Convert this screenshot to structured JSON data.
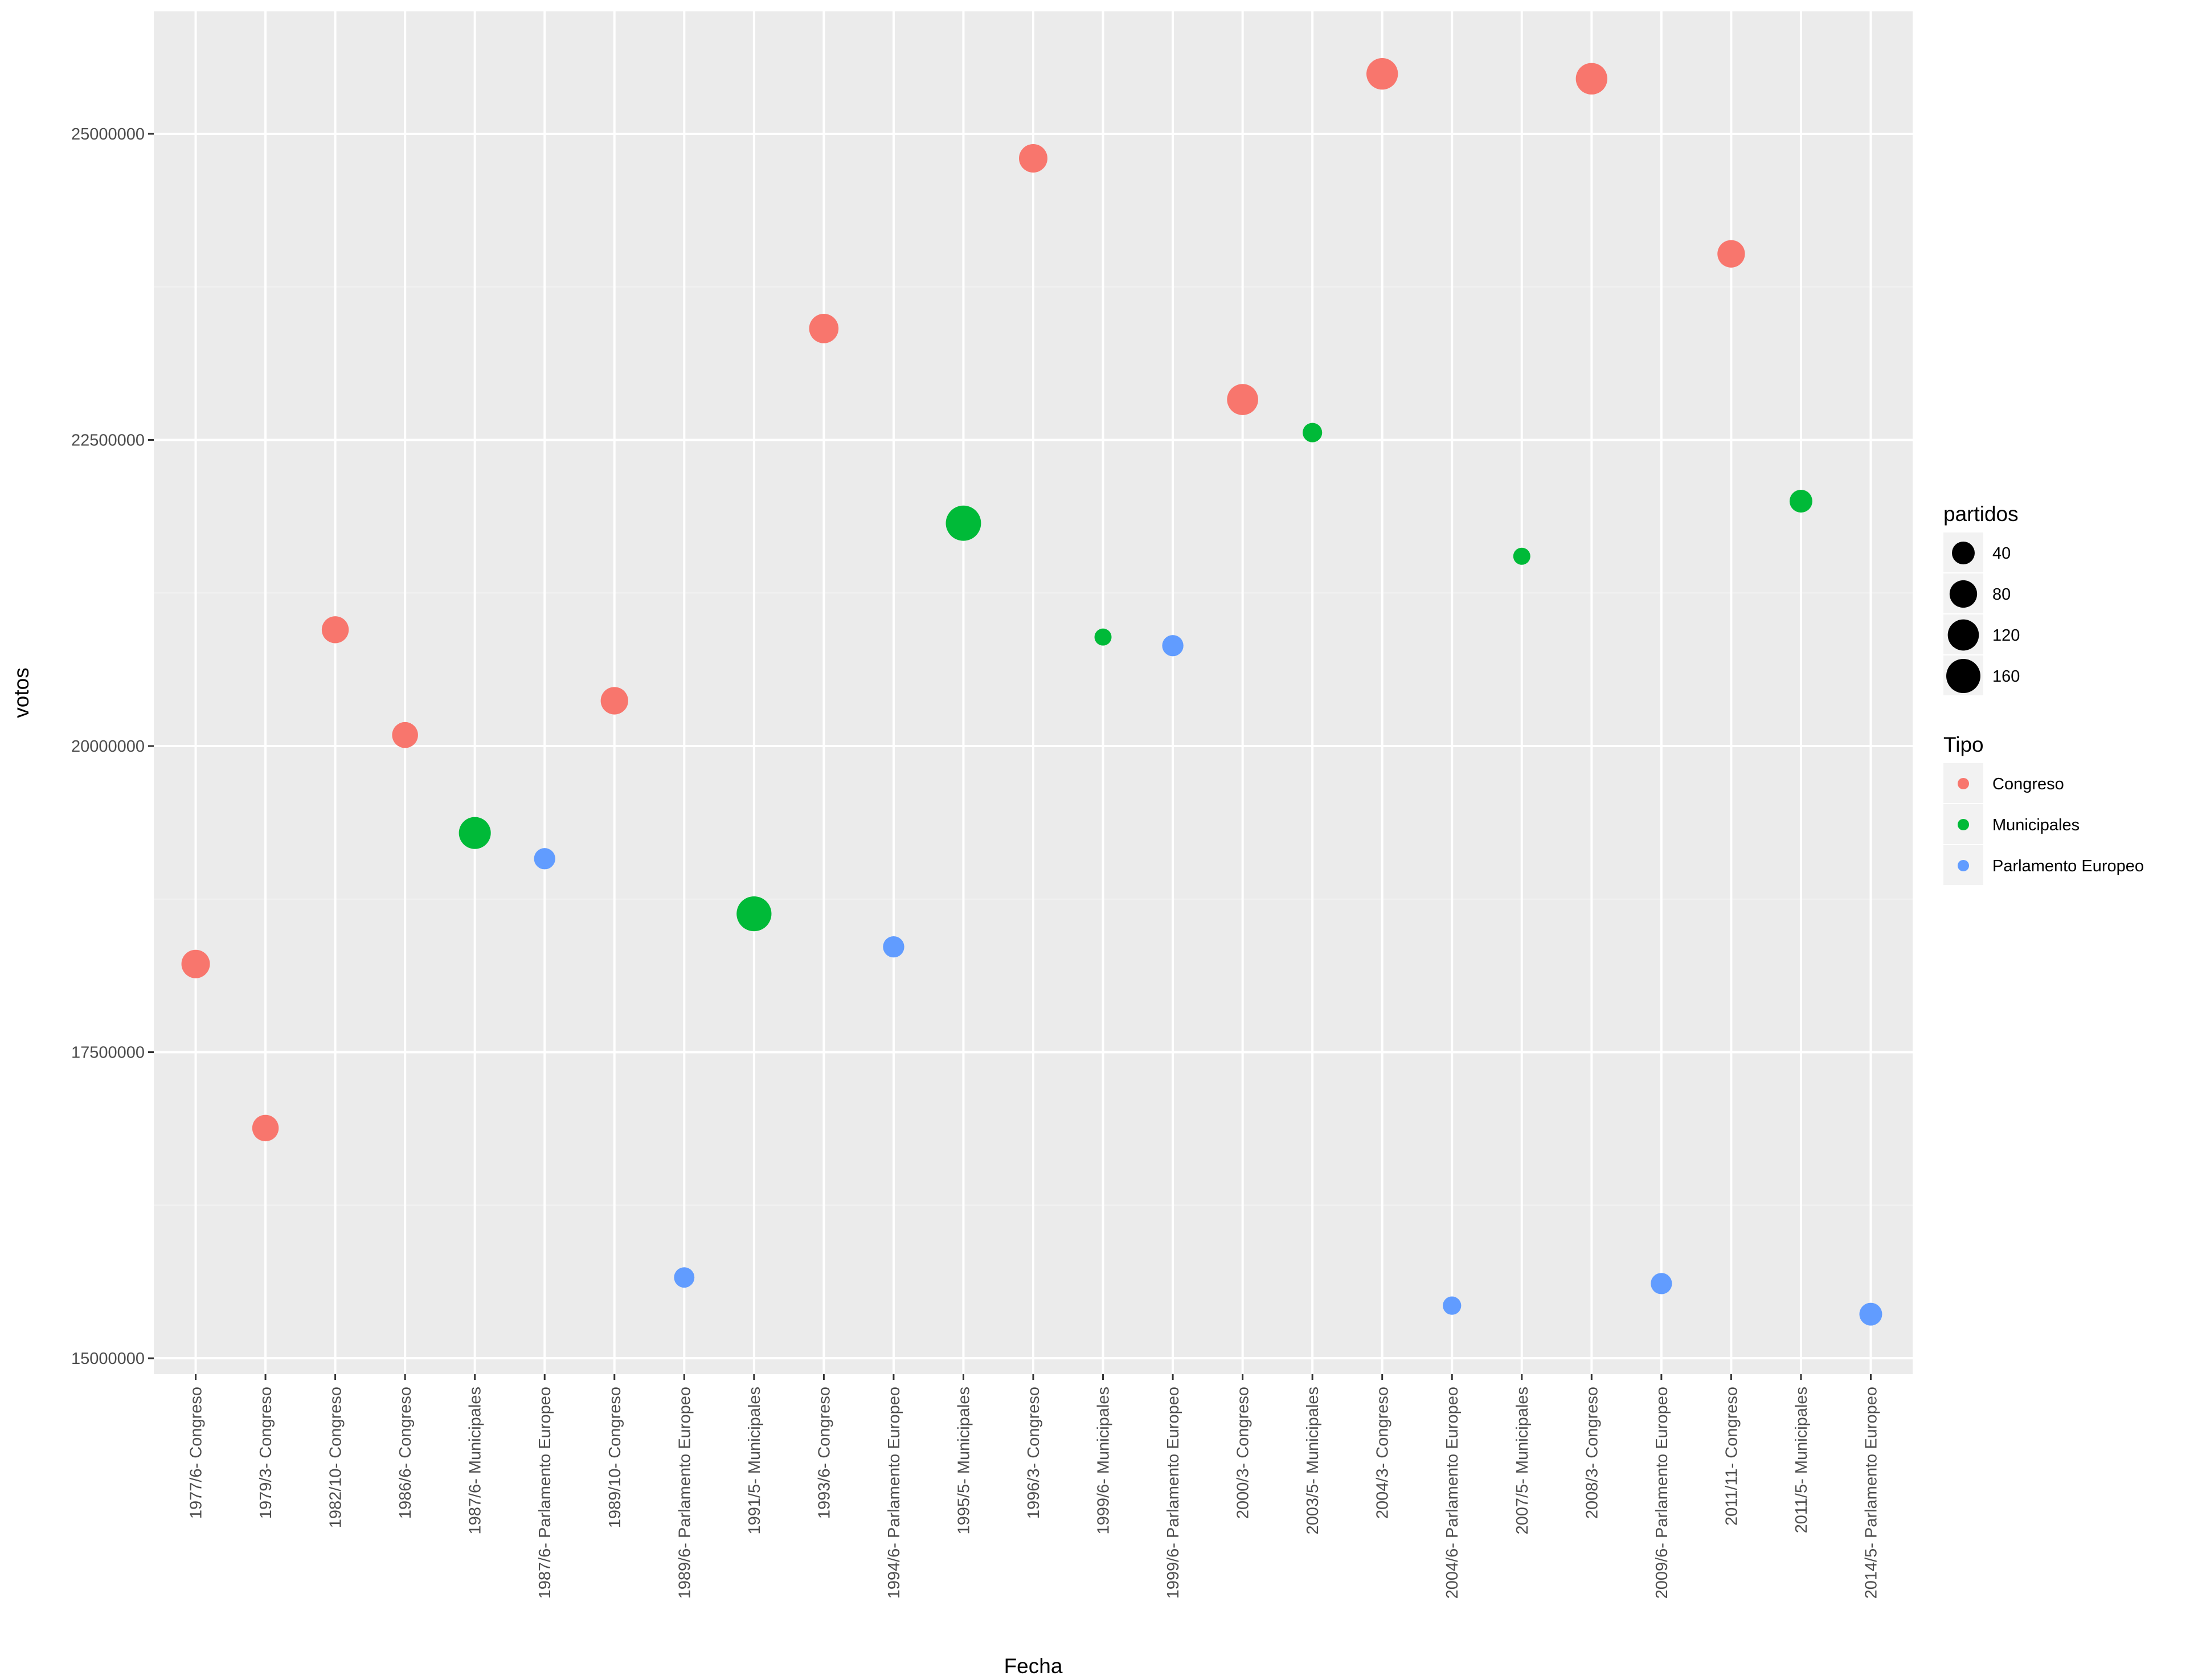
{
  "chart_data": {
    "type": "scatter",
    "title": "",
    "xlabel": "Fecha",
    "ylabel": "votos",
    "x_type": "categorical",
    "categories": [
      "1977/6- Congreso",
      "1979/3- Congreso",
      "1982/10- Congreso",
      "1986/6- Congreso",
      "1987/6- Municipales",
      "1987/6- Parlamento Europeo",
      "1989/10- Congreso",
      "1989/6- Parlamento Europeo",
      "1991/5- Municipales",
      "1993/6- Congreso",
      "1994/6- Parlamento Europeo",
      "1995/5- Municipales",
      "1996/3- Congreso",
      "1999/6- Municipales",
      "1999/6- Parlamento Europeo",
      "2000/3- Congreso",
      "2003/5- Municipales",
      "2004/3- Congreso",
      "2004/6- Parlamento Europeo",
      "2007/5- Municipales",
      "2008/3- Congreso",
      "2009/6- Parlamento Europeo",
      "2011/11- Congreso",
      "2011/5- Municipales",
      "2014/5- Parlamento Europeo"
    ],
    "ylim": [
      14870000,
      26000000
    ],
    "y_ticks": [
      "15000000",
      "17500000",
      "20000000",
      "22500000",
      "25000000"
    ],
    "y_tick_values": [
      15000000,
      17500000,
      20000000,
      22500000,
      25000000
    ],
    "grid": true,
    "legend_position": "right",
    "points": [
      {
        "x": "1977/6- Congreso",
        "y": 18220000,
        "partidos": 90,
        "tipo": "Congreso"
      },
      {
        "x": "1979/3- Congreso",
        "y": 16880000,
        "partidos": 70,
        "tipo": "Congreso"
      },
      {
        "x": "1982/10- Congreso",
        "y": 20950000,
        "partidos": 75,
        "tipo": "Congreso"
      },
      {
        "x": "1986/6- Congreso",
        "y": 20090000,
        "partidos": 65,
        "tipo": "Congreso"
      },
      {
        "x": "1987/6- Municipales",
        "y": 19290000,
        "partidos": 130,
        "tipo": "Municipales"
      },
      {
        "x": "1987/6- Parlamento Europeo",
        "y": 19080000,
        "partidos": 30,
        "tipo": "Parlamento Europeo"
      },
      {
        "x": "1989/10- Congreso",
        "y": 20370000,
        "partidos": 80,
        "tipo": "Congreso"
      },
      {
        "x": "1989/6- Parlamento Europeo",
        "y": 15660000,
        "partidos": 25,
        "tipo": "Parlamento Europeo"
      },
      {
        "x": "1991/5- Municipales",
        "y": 18630000,
        "partidos": 170,
        "tipo": "Municipales"
      },
      {
        "x": "1993/6- Congreso",
        "y": 23410000,
        "partidos": 100,
        "tipo": "Congreso"
      },
      {
        "x": "1994/6- Parlamento Europeo",
        "y": 18360000,
        "partidos": 30,
        "tipo": "Parlamento Europeo"
      },
      {
        "x": "1995/5- Municipales",
        "y": 21820000,
        "partidos": 175,
        "tipo": "Municipales"
      },
      {
        "x": "1996/3- Congreso",
        "y": 24800000,
        "partidos": 90,
        "tipo": "Congreso"
      },
      {
        "x": "1999/6- Municipales",
        "y": 20890000,
        "partidos": 10,
        "tipo": "Municipales"
      },
      {
        "x": "1999/6- Parlamento Europeo",
        "y": 20820000,
        "partidos": 30,
        "tipo": "Parlamento Europeo"
      },
      {
        "x": "2000/3- Congreso",
        "y": 22830000,
        "partidos": 120,
        "tipo": "Congreso"
      },
      {
        "x": "2003/5- Municipales",
        "y": 22560000,
        "partidos": 20,
        "tipo": "Municipales"
      },
      {
        "x": "2004/3- Congreso",
        "y": 25490000,
        "partidos": 125,
        "tipo": "Congreso"
      },
      {
        "x": "2004/6- Parlamento Europeo",
        "y": 15430000,
        "partidos": 15,
        "tipo": "Parlamento Europeo"
      },
      {
        "x": "2007/5- Municipales",
        "y": 21550000,
        "partidos": 10,
        "tipo": "Municipales"
      },
      {
        "x": "2008/3- Congreso",
        "y": 25450000,
        "partidos": 125,
        "tipo": "Congreso"
      },
      {
        "x": "2009/6- Parlamento Europeo",
        "y": 15610000,
        "partidos": 30,
        "tipo": "Parlamento Europeo"
      },
      {
        "x": "2011/11- Congreso",
        "y": 24020000,
        "partidos": 80,
        "tipo": "Congreso"
      },
      {
        "x": "2011/5- Municipales",
        "y": 22000000,
        "partidos": 40,
        "tipo": "Municipales"
      },
      {
        "x": "2014/5- Parlamento Europeo",
        "y": 15360000,
        "partidos": 40,
        "tipo": "Parlamento Europeo"
      }
    ],
    "size_legend": {
      "title": "partidos",
      "values": [
        40,
        80,
        120,
        160
      ],
      "labels": [
        "40",
        "80",
        "120",
        "160"
      ]
    },
    "color_legend": {
      "title": "Tipo",
      "entries": [
        {
          "label": "Congreso",
          "color": "#F8766D"
        },
        {
          "label": "Municipales",
          "color": "#00BA38"
        },
        {
          "label": "Parlamento Europeo",
          "color": "#619CFF"
        }
      ]
    },
    "colors": {
      "panel_background": "#EBEBEB",
      "grid_major": "#FFFFFF",
      "grid_minor": "#F2F2F2",
      "tick_text": "#4D4D4D",
      "tick_mark": "#333333",
      "legend_key_background": "#F2F2F2"
    }
  }
}
